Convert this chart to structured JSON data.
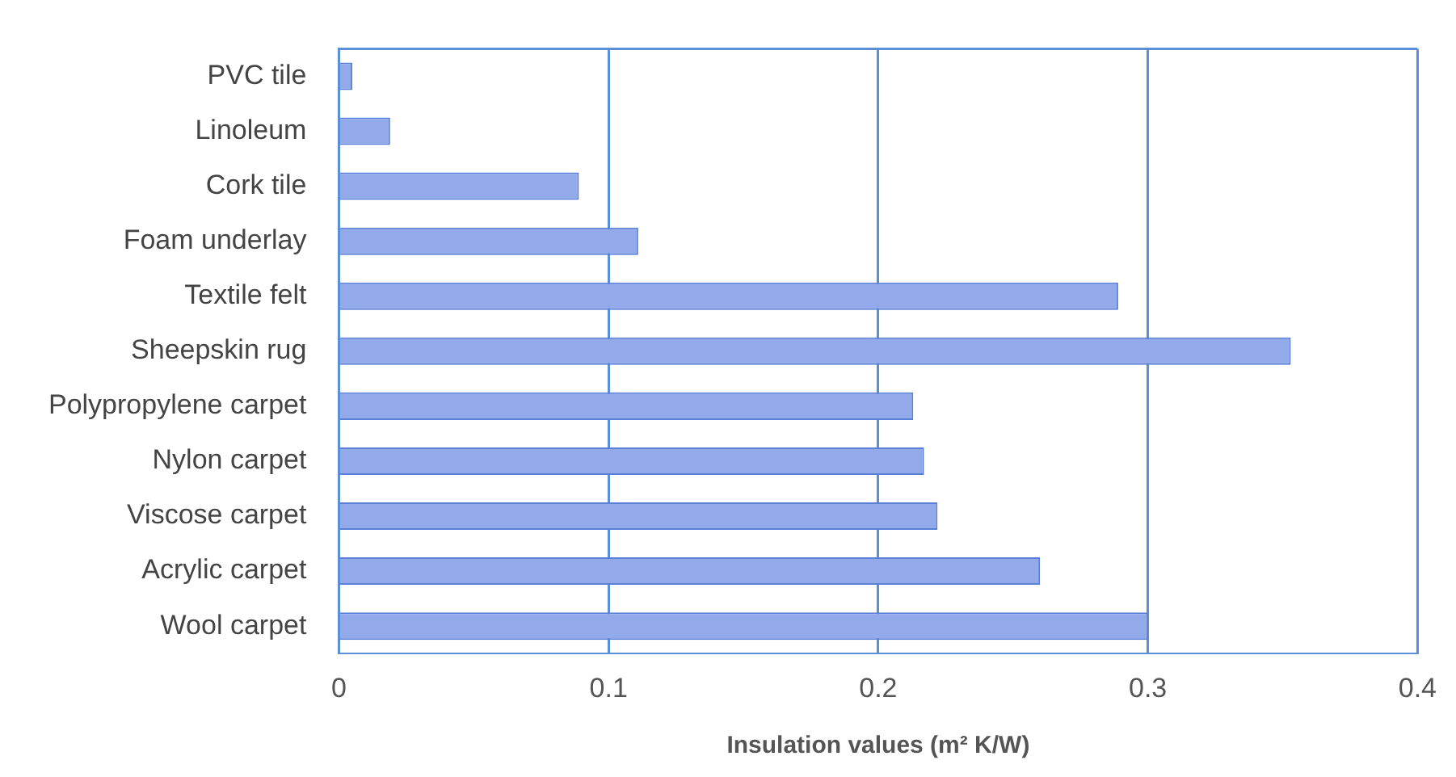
{
  "chart_data": {
    "type": "bar",
    "orientation": "horizontal",
    "xlabel": "Insulation values (m² K/W)",
    "categories": [
      "PVC tile",
      "Linoleum",
      "Cork tile",
      "Foam underlay",
      "Textile felt",
      "Sheepskin rug",
      "Polypropylene carpet",
      "Nylon carpet",
      "Viscose carpet",
      "Acrylic carpet",
      "Wool carpet"
    ],
    "values": [
      0.005,
      0.019,
      0.089,
      0.111,
      0.289,
      0.353,
      0.213,
      0.217,
      0.222,
      0.26,
      0.3
    ],
    "color": "#92a9ea",
    "xlim": [
      0,
      0.4
    ],
    "xticks": [
      0,
      0.1,
      0.2,
      0.3,
      0.4
    ],
    "grid": "x",
    "legend": false
  }
}
